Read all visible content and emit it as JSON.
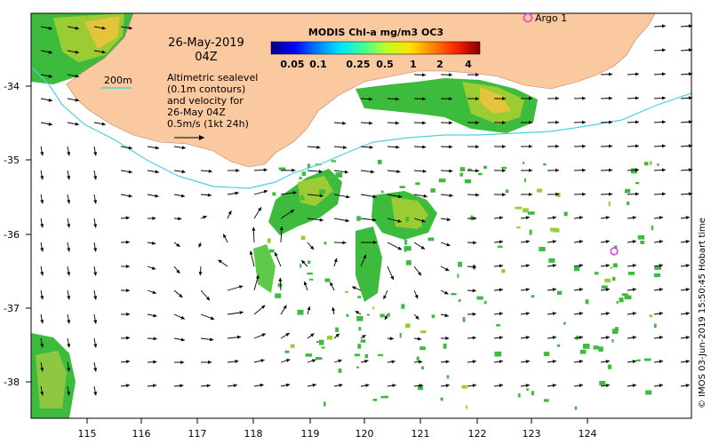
{
  "map": {
    "date_line1": "26-May-2019",
    "date_line2": "04Z",
    "depth_label": "200m",
    "info_lines": [
      "Altimetric sealevel",
      "(0.1m contours)",
      "and velocity for",
      "26-May 04Z",
      "0.5m/s (1kt 24h)"
    ],
    "credit": "© IMOS 03-Jun-2019 15:50:45 Hobart time",
    "float_label": "Argo 1"
  },
  "colorbar": {
    "title": "MODIS Chl-a mg/m3 OC3",
    "ticks": [
      "0.05",
      "0.1",
      "0.25",
      "0.5",
      "1",
      "2",
      "4"
    ],
    "colors": [
      "#00007f",
      "#0000ff",
      "#0080ff",
      "#00e5ff",
      "#40ff90",
      "#c0ff20",
      "#ffe000",
      "#ff8000",
      "#ff2000",
      "#800000"
    ]
  },
  "axes": {
    "lon_ticks": [
      "115",
      "116",
      "117",
      "118",
      "119",
      "120",
      "121",
      "122",
      "123",
      "124"
    ],
    "lat_ticks": [
      "-34",
      "-35",
      "-36",
      "-37",
      "-38"
    ]
  },
  "style": {
    "land_color": "#fbc9a0",
    "isobath_color": "#4dd0e1",
    "float_color": "#e040e0",
    "arrow_color": "#000000"
  }
}
